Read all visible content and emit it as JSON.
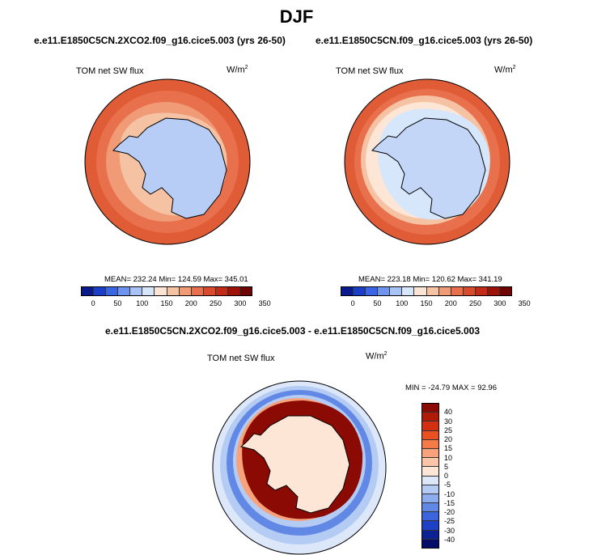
{
  "figure_title": "DJF",
  "panels": {
    "left": {
      "case": "e.e11.E1850C5CN.2XCO2.f09_g16.cice5.003 (yrs 26-50)",
      "variable": "TOM net SW flux",
      "units": "W/m",
      "units_exp": "2",
      "stats": "MEAN= 232.24  Min= 124.59  Max= 345.01"
    },
    "right": {
      "case": "e.e11.E1850C5CN.f09_g16.cice5.003 (yrs 26-50)",
      "variable": "TOM net SW flux",
      "units": "W/m",
      "units_exp": "2",
      "stats": "MEAN= 223.18  Min= 120.62  Max= 341.19"
    },
    "diff": {
      "case": "e.e11.E1850C5CN.2XCO2.f09_g16.cice5.003 - e.e11.E1850C5CN.f09_g16.cice5.003",
      "variable": "TOM net SW flux",
      "units": "W/m",
      "units_exp": "2",
      "stats": "MIN = -24.79 MAX =  92.96"
    }
  },
  "field_colorbar": {
    "tick_labels": [
      "0",
      "50",
      "100",
      "150",
      "200",
      "250",
      "300",
      "350"
    ],
    "colors": [
      "#0a1a8c",
      "#1a3ec8",
      "#3a66e6",
      "#6e94f0",
      "#a8c4f7",
      "#d6e6fb",
      "#fbe4d4",
      "#f6c2a4",
      "#f09a76",
      "#e8704c",
      "#da4a2c",
      "#c42a18",
      "#9e1208",
      "#6e0404"
    ]
  },
  "diff_colorbar": {
    "tick_labels": [
      "40",
      "30",
      "25",
      "20",
      "15",
      "10",
      "5",
      "0",
      "-5",
      "-10",
      "-15",
      "-20",
      "-25",
      "-30",
      "-40"
    ],
    "colors": [
      "#8b0a04",
      "#b01a08",
      "#d23010",
      "#ea5020",
      "#f47a48",
      "#f8a27c",
      "#fbc6a8",
      "#fde6d6",
      "#dce8fa",
      "#b4ccf4",
      "#8cacee",
      "#6288e6",
      "#3c64dc",
      "#1e40c4",
      "#0c2292",
      "#050d6a"
    ]
  }
}
